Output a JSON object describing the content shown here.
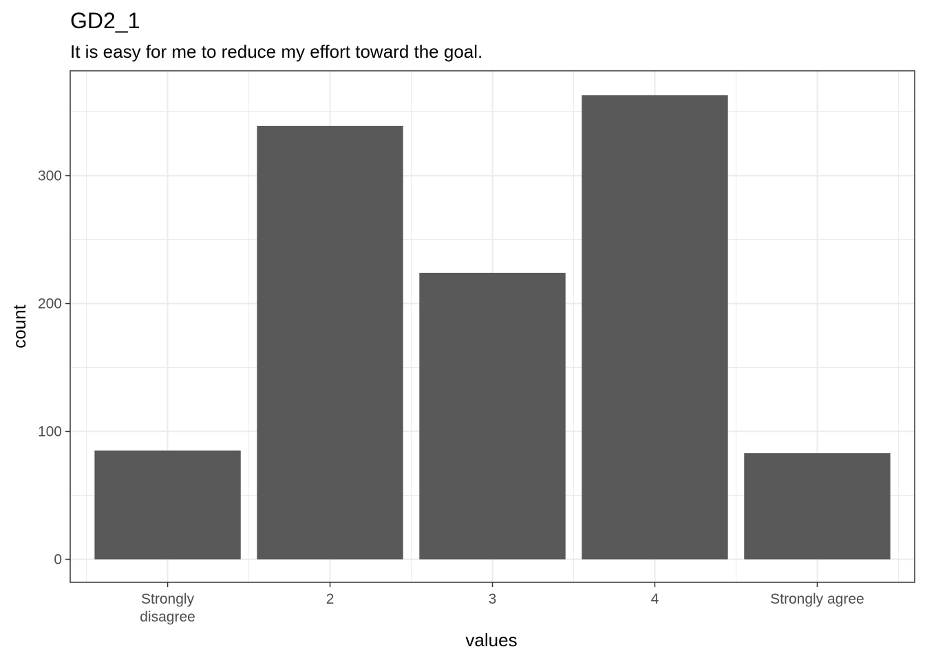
{
  "chart_data": {
    "type": "bar",
    "title": "GD2_1",
    "subtitle": "It is easy for me to reduce my effort toward the goal.",
    "xlabel": "values",
    "ylabel": "count",
    "categories": [
      "Strongly disagree",
      "2",
      "3",
      "4",
      "Strongly agree"
    ],
    "category_tick_labels": [
      [
        "Strongly",
        "disagree"
      ],
      [
        "2"
      ],
      [
        "3"
      ],
      [
        "4"
      ],
      [
        "Strongly agree"
      ]
    ],
    "values": [
      85,
      339,
      224,
      363,
      83
    ],
    "y_ticks": [
      0,
      100,
      200,
      300
    ],
    "ylim": [
      -18,
      382
    ],
    "grid": true,
    "bar_color": "#595959",
    "grid_color": "#ebebeb",
    "panel_border_color": "#333333"
  }
}
